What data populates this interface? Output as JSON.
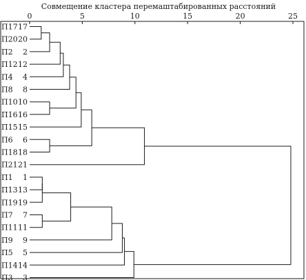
{
  "title": "Совмещение кластера перемаштабированных расстояний",
  "axis": {
    "min": 0,
    "max": 25,
    "ticks": [
      0,
      5,
      10,
      15,
      20,
      25
    ]
  },
  "leaves": [
    {
      "name": "П17",
      "num": "17"
    },
    {
      "name": "П20",
      "num": "20"
    },
    {
      "name": "П2",
      "num": "2"
    },
    {
      "name": "П12",
      "num": "12"
    },
    {
      "name": "П4",
      "num": "4"
    },
    {
      "name": "П8",
      "num": "8"
    },
    {
      "name": "П10",
      "num": "10"
    },
    {
      "name": "П16",
      "num": "16"
    },
    {
      "name": "П15",
      "num": "15"
    },
    {
      "name": "П6",
      "num": "6"
    },
    {
      "name": "П18",
      "num": "18"
    },
    {
      "name": "П21",
      "num": "21"
    },
    {
      "name": "П1",
      "num": "1"
    },
    {
      "name": "П13",
      "num": "13"
    },
    {
      "name": "П19",
      "num": "19"
    },
    {
      "name": "П7",
      "num": "7"
    },
    {
      "name": "П11",
      "num": "11"
    },
    {
      "name": "П9",
      "num": "9"
    },
    {
      "name": "П5",
      "num": "5"
    },
    {
      "name": "П14",
      "num": "14"
    },
    {
      "name": "П3",
      "num": "3"
    }
  ],
  "merges": [
    {
      "a": 0,
      "b": 1,
      "height": 1.1
    },
    {
      "a": 21,
      "b": 2,
      "height": 1.9
    },
    {
      "a": 22,
      "b": 3,
      "height": 2.9
    },
    {
      "a": 23,
      "b": 4,
      "height": 3.2
    },
    {
      "a": 24,
      "b": 5,
      "height": 3.8
    },
    {
      "a": 6,
      "b": 7,
      "height": 1.9
    },
    {
      "a": 25,
      "b": 26,
      "height": 4.4
    },
    {
      "a": 27,
      "b": 8,
      "height": 4.9
    },
    {
      "a": 9,
      "b": 10,
      "height": 1.9
    },
    {
      "a": 28,
      "b": 29,
      "height": 5.9
    },
    {
      "a": 30,
      "b": 11,
      "height": 10.9
    },
    {
      "a": 12,
      "b": 13,
      "height": 1.2
    },
    {
      "a": 32,
      "b": 14,
      "height": 1.2
    },
    {
      "a": 15,
      "b": 16,
      "height": 1.2
    },
    {
      "a": 33,
      "b": 34,
      "height": 3.9
    },
    {
      "a": 35,
      "b": 17,
      "height": 7.8
    },
    {
      "a": 36,
      "b": 18,
      "height": 8.8
    },
    {
      "a": 37,
      "b": 19,
      "height": 9.0
    },
    {
      "a": 38,
      "b": 20,
      "height": 9.9
    },
    {
      "a": 31,
      "b": 39,
      "height": 24.8
    }
  ]
}
